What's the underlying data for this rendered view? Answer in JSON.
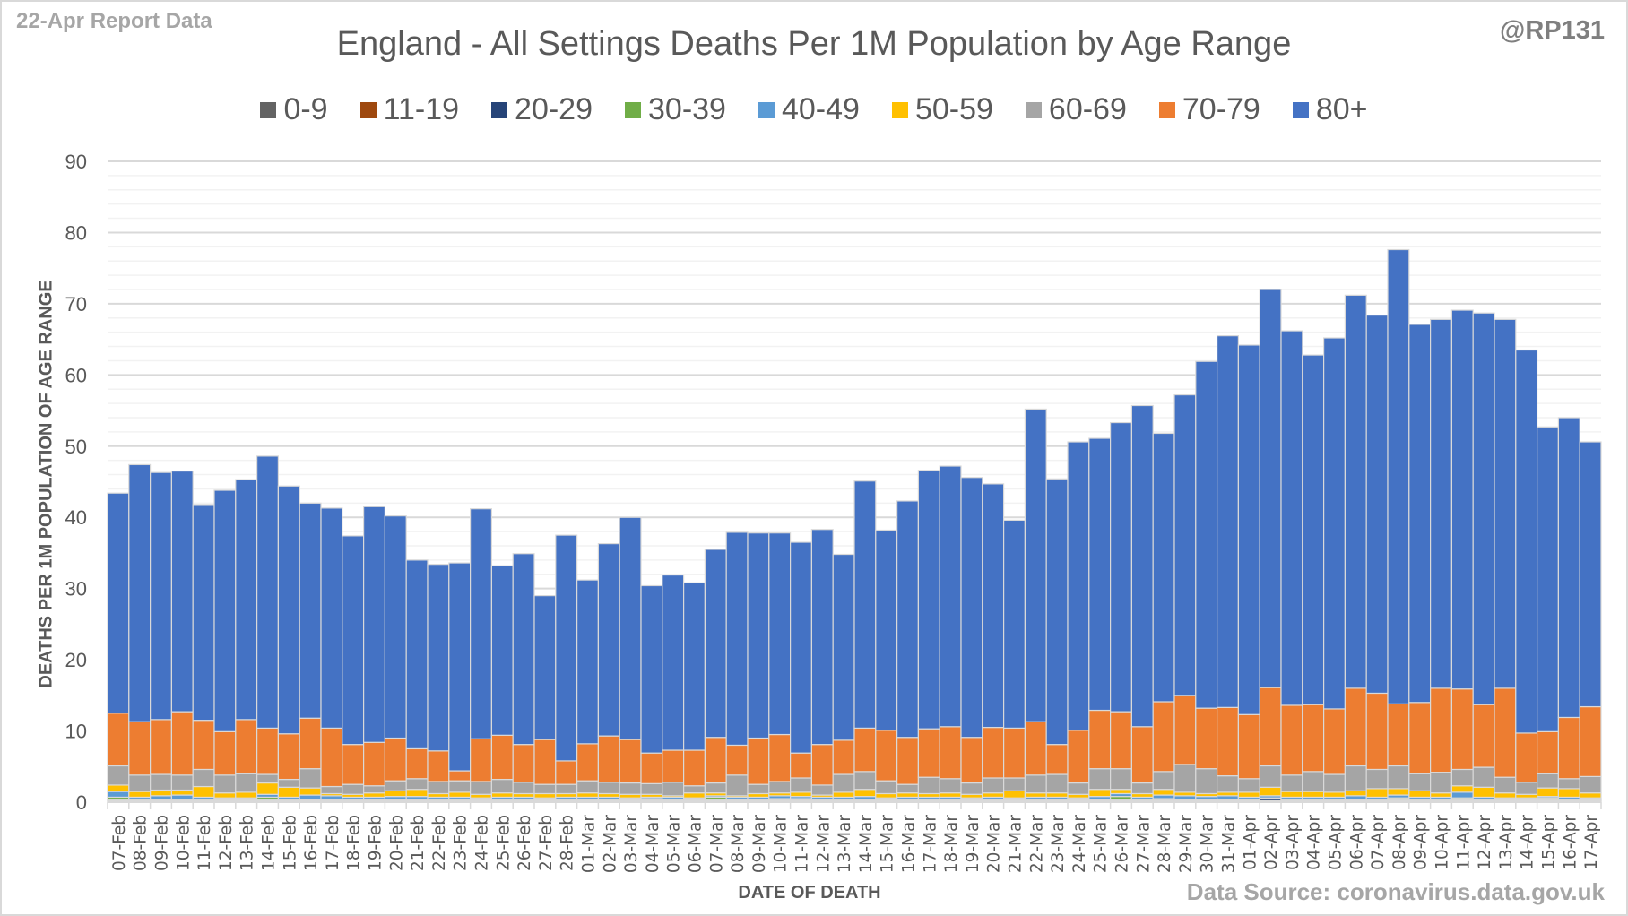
{
  "header": {
    "report_label": "22-Apr Report Data",
    "handle": "@RP131",
    "source": "Data Source: coronavirus.data.gov.uk"
  },
  "chart_data": {
    "type": "bar",
    "stacked": true,
    "title": "England - All Settings Deaths Per 1M Population by Age Range",
    "xlabel": "DATE OF DEATH",
    "ylabel": "DEATHS PER 1M POPULATION OF AGE RANGE",
    "ylim": [
      0,
      90
    ],
    "yticks": [
      0,
      10,
      20,
      30,
      40,
      50,
      60,
      70,
      80,
      90
    ],
    "grid": true,
    "legend_position": "top",
    "categories": [
      "07-Feb",
      "08-Feb",
      "09-Feb",
      "10-Feb",
      "11-Feb",
      "12-Feb",
      "13-Feb",
      "14-Feb",
      "15-Feb",
      "16-Feb",
      "17-Feb",
      "18-Feb",
      "19-Feb",
      "20-Feb",
      "21-Feb",
      "22-Feb",
      "23-Feb",
      "24-Feb",
      "25-Feb",
      "26-Feb",
      "27-Feb",
      "28-Feb",
      "01-Mar",
      "02-Mar",
      "03-Mar",
      "04-Mar",
      "05-Mar",
      "06-Mar",
      "07-Mar",
      "08-Mar",
      "09-Mar",
      "10-Mar",
      "11-Mar",
      "12-Mar",
      "13-Mar",
      "14-Mar",
      "15-Mar",
      "16-Mar",
      "17-Mar",
      "18-Mar",
      "19-Mar",
      "20-Mar",
      "21-Mar",
      "22-Mar",
      "23-Mar",
      "24-Mar",
      "25-Mar",
      "26-Mar",
      "27-Mar",
      "28-Mar",
      "29-Mar",
      "30-Mar",
      "31-Mar",
      "01-Apr",
      "02-Apr",
      "03-Apr",
      "04-Apr",
      "05-Apr",
      "06-Apr",
      "07-Apr",
      "08-Apr",
      "09-Apr",
      "10-Apr",
      "11-Apr",
      "12-Apr",
      "13-Apr",
      "14-Apr",
      "15-Apr",
      "16-Apr",
      "17-Apr"
    ],
    "series": [
      {
        "name": "0-9",
        "color": "#636363",
        "values": [
          0.1,
          0.1,
          0.1,
          0.1,
          0.1,
          0.1,
          0.1,
          0.1,
          0.1,
          0.1,
          0.1,
          0.1,
          0.1,
          0.1,
          0.1,
          0.1,
          0.1,
          0.1,
          0.1,
          0.1,
          0.1,
          0.1,
          0.1,
          0.1,
          0.1,
          0.1,
          0.1,
          0.1,
          0.1,
          0.1,
          0.1,
          0.1,
          0.1,
          0.1,
          0.1,
          0.1,
          0.1,
          0.1,
          0.1,
          0.1,
          0.1,
          0.1,
          0.1,
          0.1,
          0.1,
          0.1,
          0.1,
          0.1,
          0.1,
          0.1,
          0.1,
          0.1,
          0.1,
          0.1,
          0.1,
          0.1,
          0.1,
          0.1,
          0.1,
          0.1,
          0.1,
          0.1,
          0.1,
          0.1,
          0.1,
          0.1,
          0.1,
          0.1,
          0.1,
          0.1
        ]
      },
      {
        "name": "11-19",
        "color": "#9e480e",
        "values": [
          0.1,
          0.1,
          0.1,
          0.1,
          0.1,
          0.1,
          0.1,
          0.1,
          0.1,
          0.1,
          0.1,
          0.1,
          0.1,
          0.1,
          0.1,
          0.1,
          0.1,
          0.1,
          0.1,
          0.1,
          0.1,
          0.1,
          0.1,
          0.1,
          0.1,
          0.1,
          0.1,
          0.1,
          0.1,
          0.1,
          0.1,
          0.1,
          0.1,
          0.1,
          0.1,
          0.1,
          0.1,
          0.1,
          0.1,
          0.1,
          0.1,
          0.1,
          0.1,
          0.1,
          0.1,
          0.1,
          0.1,
          0.1,
          0.1,
          0.1,
          0.1,
          0.1,
          0.1,
          0.1,
          0.1,
          0.1,
          0.1,
          0.1,
          0.1,
          0.1,
          0.1,
          0.1,
          0.1,
          0.1,
          0.1,
          0.1,
          0.1,
          0.1,
          0.1,
          0.1
        ]
      },
      {
        "name": "20-29",
        "color": "#264478",
        "values": [
          0.1,
          0.1,
          0.1,
          0.1,
          0.1,
          0.1,
          0.1,
          0.1,
          0.1,
          0.1,
          0.1,
          0.1,
          0.1,
          0.1,
          0.1,
          0.1,
          0.1,
          0.1,
          0.1,
          0.1,
          0.1,
          0.1,
          0.1,
          0.1,
          0.1,
          0.1,
          0.1,
          0.1,
          0.1,
          0.1,
          0.1,
          0.1,
          0.1,
          0.1,
          0.1,
          0.1,
          0.1,
          0.1,
          0.1,
          0.1,
          0.1,
          0.1,
          0.1,
          0.1,
          0.1,
          0.1,
          0.1,
          0.1,
          0.1,
          0.1,
          0.1,
          0.1,
          0.1,
          0.1,
          0.3,
          0.1,
          0.1,
          0.1,
          0.1,
          0.1,
          0.1,
          0.1,
          0.1,
          0.1,
          0.1,
          0.1,
          0.1,
          0.1,
          0.1,
          0.1
        ]
      },
      {
        "name": "30-39",
        "color": "#70ad47",
        "values": [
          0.4,
          0.1,
          0.1,
          0.1,
          0.1,
          0.1,
          0.1,
          0.4,
          0.1,
          0.1,
          0.1,
          0.1,
          0.1,
          0.1,
          0.1,
          0.1,
          0.1,
          0.1,
          0.1,
          0.1,
          0.1,
          0.1,
          0.1,
          0.1,
          0.1,
          0.2,
          0.1,
          0.1,
          0.4,
          0.1,
          0.1,
          0.2,
          0.2,
          0.1,
          0.1,
          0.1,
          0.1,
          0.1,
          0.1,
          0.1,
          0.1,
          0.1,
          0.1,
          0.1,
          0.1,
          0.1,
          0.1,
          0.5,
          0.1,
          0.2,
          0.1,
          0.1,
          0.1,
          0.1,
          0.1,
          0.1,
          0.1,
          0.1,
          0.1,
          0.1,
          0.3,
          0.1,
          0.1,
          0.3,
          0.1,
          0.1,
          0.1,
          0.3,
          0.1,
          0.1
        ]
      },
      {
        "name": "40-49",
        "color": "#5b9bd5",
        "values": [
          0.8,
          0.3,
          0.5,
          0.6,
          0.3,
          0.2,
          0.2,
          0.4,
          0.3,
          0.6,
          0.5,
          0.3,
          0.3,
          0.4,
          0.4,
          0.3,
          0.3,
          0.2,
          0.3,
          0.3,
          0.2,
          0.3,
          0.3,
          0.3,
          0.2,
          0.2,
          0.3,
          0.2,
          0.2,
          0.3,
          0.3,
          0.4,
          0.3,
          0.3,
          0.3,
          0.4,
          0.2,
          0.3,
          0.3,
          0.3,
          0.2,
          0.3,
          0.2,
          0.3,
          0.3,
          0.2,
          0.4,
          0.4,
          0.3,
          0.5,
          0.5,
          0.4,
          0.5,
          0.3,
          0.3,
          0.3,
          0.3,
          0.3,
          0.5,
          0.3,
          0.4,
          0.3,
          0.3,
          0.8,
          0.3,
          0.2,
          0.2,
          0.2,
          0.3,
          0.2
        ]
      },
      {
        "name": "50-59",
        "color": "#ffc000",
        "values": [
          0.9,
          0.8,
          0.8,
          0.7,
          1.5,
          0.7,
          0.8,
          1.6,
          1.4,
          1.0,
          0.3,
          0.4,
          0.6,
          0.8,
          1.0,
          0.5,
          0.7,
          0.5,
          0.6,
          0.5,
          0.6,
          0.5,
          0.6,
          0.5,
          0.5,
          0.4,
          0.2,
          0.7,
          0.4,
          0.2,
          0.5,
          0.4,
          0.6,
          0.3,
          0.7,
          1.0,
          0.6,
          0.6,
          0.5,
          0.6,
          0.5,
          0.6,
          1.0,
          0.6,
          0.6,
          0.5,
          1.0,
          0.6,
          0.5,
          0.8,
          0.5,
          0.4,
          0.5,
          0.7,
          1.2,
          0.8,
          0.8,
          0.7,
          0.7,
          1.2,
          0.9,
          0.9,
          0.6,
          0.9,
          1.4,
          0.7,
          0.5,
          1.2,
          1.2,
          0.7
        ]
      },
      {
        "name": "60-69",
        "color": "#a5a5a5",
        "values": [
          2.7,
          2.3,
          2.2,
          2.1,
          2.4,
          2.5,
          2.6,
          1.2,
          1.1,
          2.7,
          1.0,
          1.4,
          1.0,
          1.4,
          1.5,
          1.7,
          1.6,
          1.8,
          1.9,
          1.6,
          1.3,
          1.3,
          1.7,
          1.6,
          1.6,
          1.5,
          1.9,
          1.0,
          1.4,
          2.9,
          1.3,
          1.6,
          2.0,
          1.4,
          2.5,
          2.5,
          1.8,
          1.2,
          2.3,
          2.0,
          1.6,
          2.1,
          1.8,
          2.5,
          2.6,
          1.6,
          2.9,
          2.9,
          1.5,
          2.5,
          3.9,
          3.5,
          2.3,
          1.9,
          3.0,
          2.3,
          2.8,
          2.5,
          3.5,
          2.7,
          3.2,
          2.4,
          2.9,
          2.3,
          2.8,
          2.2,
          1.7,
          2.0,
          1.4,
          2.3
        ]
      },
      {
        "name": "70-79",
        "color": "#ed7d31",
        "values": [
          7.4,
          7.5,
          7.7,
          8.9,
          6.9,
          6.1,
          7.6,
          6.5,
          6.4,
          7.1,
          8.2,
          5.6,
          6.1,
          6.0,
          4.2,
          4.3,
          1.4,
          6.0,
          6.2,
          5.3,
          6.3,
          3.3,
          5.2,
          6.5,
          6.1,
          4.3,
          4.5,
          5.0,
          6.4,
          4.2,
          6.5,
          6.6,
          3.5,
          5.7,
          4.8,
          6.1,
          7.1,
          6.6,
          6.8,
          7.3,
          6.4,
          7.1,
          7.0,
          7.5,
          4.2,
          7.4,
          8.2,
          8.0,
          7.9,
          9.8,
          9.7,
          8.5,
          9.6,
          9.0,
          11.0,
          9.8,
          9.4,
          9.2,
          10.9,
          10.7,
          8.7,
          10.0,
          11.8,
          11.3,
          8.8,
          12.5,
          6.9,
          5.9,
          8.6,
          9.8
        ]
      },
      {
        "name": "80+",
        "color": "#4472c4",
        "values": [
          30.9,
          36.1,
          34.7,
          33.8,
          30.3,
          33.9,
          33.7,
          38.2,
          34.8,
          30.2,
          30.9,
          29.3,
          33.1,
          31.2,
          26.5,
          26.2,
          29.2,
          32.3,
          23.8,
          26.8,
          20.2,
          31.7,
          23.0,
          27.0,
          31.2,
          23.5,
          24.6,
          23.5,
          26.4,
          29.9,
          28.8,
          28.3,
          29.6,
          30.2,
          26.1,
          34.7,
          28.1,
          33.2,
          36.3,
          36.6,
          36.5,
          34.2,
          29.2,
          43.9,
          37.3,
          40.5,
          38.2,
          40.6,
          45.1,
          37.7,
          42.2,
          48.7,
          52.2,
          51.9,
          55.9,
          52.6,
          49.1,
          52.1,
          55.2,
          53.1,
          63.8,
          53.1,
          51.8,
          53.2,
          55.0,
          51.8,
          53.8,
          42.8,
          42.1,
          37.2
        ]
      }
    ]
  }
}
